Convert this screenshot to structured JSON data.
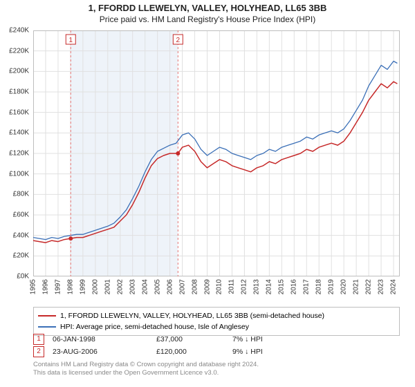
{
  "title_line1": "1, FFORDD LLEWELYN, VALLEY, HOLYHEAD, LL65 3BB",
  "title_line2": "Price paid vs. HM Land Registry's House Price Index (HPI)",
  "chart": {
    "type": "line",
    "background_color": "#ffffff",
    "grid_color": "#e0e0e0",
    "plot_border_color": "#bdbdbd",
    "shaded_band": {
      "x_start": 1998.02,
      "x_end": 2006.65,
      "fill": "#eef3f9"
    },
    "xlim": [
      1995,
      2024.5
    ],
    "ylim": [
      0,
      240000
    ],
    "ytick_step": 20000,
    "y_prefix": "£",
    "y_suffix": "K",
    "y_divisor": 1000,
    "xticks": [
      1995,
      1996,
      1997,
      1998,
      1999,
      2000,
      2001,
      2002,
      2003,
      2004,
      2005,
      2006,
      2007,
      2008,
      2009,
      2010,
      2011,
      2012,
      2013,
      2014,
      2015,
      2016,
      2017,
      2018,
      2019,
      2020,
      2021,
      2022,
      2023,
      2024
    ],
    "series": [
      {
        "name": "1, FFORDD LLEWELYN, VALLEY, HOLYHEAD, LL65 3BB (semi-detached house)",
        "color": "#c62828",
        "width": 1.5,
        "data": [
          [
            1995.0,
            35000
          ],
          [
            1995.5,
            34000
          ],
          [
            1996.0,
            33000
          ],
          [
            1996.5,
            35000
          ],
          [
            1997.0,
            34000
          ],
          [
            1997.5,
            36000
          ],
          [
            1998.0,
            37000
          ],
          [
            1998.5,
            38000
          ],
          [
            1999.0,
            38000
          ],
          [
            1999.5,
            40000
          ],
          [
            2000.0,
            42000
          ],
          [
            2000.5,
            44000
          ],
          [
            2001.0,
            46000
          ],
          [
            2001.5,
            48000
          ],
          [
            2002.0,
            54000
          ],
          [
            2002.5,
            60000
          ],
          [
            2003.0,
            70000
          ],
          [
            2003.5,
            82000
          ],
          [
            2004.0,
            96000
          ],
          [
            2004.5,
            108000
          ],
          [
            2005.0,
            115000
          ],
          [
            2005.5,
            118000
          ],
          [
            2006.0,
            120000
          ],
          [
            2006.65,
            120000
          ],
          [
            2007.0,
            126000
          ],
          [
            2007.5,
            128000
          ],
          [
            2008.0,
            122000
          ],
          [
            2008.5,
            112000
          ],
          [
            2009.0,
            106000
          ],
          [
            2009.5,
            110000
          ],
          [
            2010.0,
            114000
          ],
          [
            2010.5,
            112000
          ],
          [
            2011.0,
            108000
          ],
          [
            2011.5,
            106000
          ],
          [
            2012.0,
            104000
          ],
          [
            2012.5,
            102000
          ],
          [
            2013.0,
            106000
          ],
          [
            2013.5,
            108000
          ],
          [
            2014.0,
            112000
          ],
          [
            2014.5,
            110000
          ],
          [
            2015.0,
            114000
          ],
          [
            2015.5,
            116000
          ],
          [
            2016.0,
            118000
          ],
          [
            2016.5,
            120000
          ],
          [
            2017.0,
            124000
          ],
          [
            2017.5,
            122000
          ],
          [
            2018.0,
            126000
          ],
          [
            2018.5,
            128000
          ],
          [
            2019.0,
            130000
          ],
          [
            2019.5,
            128000
          ],
          [
            2020.0,
            132000
          ],
          [
            2020.5,
            140000
          ],
          [
            2021.0,
            150000
          ],
          [
            2021.5,
            160000
          ],
          [
            2022.0,
            172000
          ],
          [
            2022.5,
            180000
          ],
          [
            2023.0,
            188000
          ],
          [
            2023.5,
            184000
          ],
          [
            2024.0,
            190000
          ],
          [
            2024.3,
            188000
          ]
        ]
      },
      {
        "name": "HPI: Average price, semi-detached house, Isle of Anglesey",
        "color": "#3a6fb7",
        "width": 1.3,
        "data": [
          [
            1995.0,
            38000
          ],
          [
            1995.5,
            37000
          ],
          [
            1996.0,
            36000
          ],
          [
            1996.5,
            38000
          ],
          [
            1997.0,
            37000
          ],
          [
            1997.5,
            39000
          ],
          [
            1998.0,
            40000
          ],
          [
            1998.5,
            41000
          ],
          [
            1999.0,
            41000
          ],
          [
            1999.5,
            43000
          ],
          [
            2000.0,
            45000
          ],
          [
            2000.5,
            47000
          ],
          [
            2001.0,
            49000
          ],
          [
            2001.5,
            52000
          ],
          [
            2002.0,
            58000
          ],
          [
            2002.5,
            65000
          ],
          [
            2003.0,
            76000
          ],
          [
            2003.5,
            88000
          ],
          [
            2004.0,
            102000
          ],
          [
            2004.5,
            114000
          ],
          [
            2005.0,
            122000
          ],
          [
            2005.5,
            125000
          ],
          [
            2006.0,
            128000
          ],
          [
            2006.5,
            130000
          ],
          [
            2007.0,
            138000
          ],
          [
            2007.5,
            140000
          ],
          [
            2008.0,
            134000
          ],
          [
            2008.5,
            124000
          ],
          [
            2009.0,
            118000
          ],
          [
            2009.5,
            122000
          ],
          [
            2010.0,
            126000
          ],
          [
            2010.5,
            124000
          ],
          [
            2011.0,
            120000
          ],
          [
            2011.5,
            118000
          ],
          [
            2012.0,
            116000
          ],
          [
            2012.5,
            114000
          ],
          [
            2013.0,
            118000
          ],
          [
            2013.5,
            120000
          ],
          [
            2014.0,
            124000
          ],
          [
            2014.5,
            122000
          ],
          [
            2015.0,
            126000
          ],
          [
            2015.5,
            128000
          ],
          [
            2016.0,
            130000
          ],
          [
            2016.5,
            132000
          ],
          [
            2017.0,
            136000
          ],
          [
            2017.5,
            134000
          ],
          [
            2018.0,
            138000
          ],
          [
            2018.5,
            140000
          ],
          [
            2019.0,
            142000
          ],
          [
            2019.5,
            140000
          ],
          [
            2020.0,
            144000
          ],
          [
            2020.5,
            152000
          ],
          [
            2021.0,
            162000
          ],
          [
            2021.5,
            172000
          ],
          [
            2022.0,
            186000
          ],
          [
            2022.5,
            196000
          ],
          [
            2023.0,
            206000
          ],
          [
            2023.5,
            202000
          ],
          [
            2024.0,
            210000
          ],
          [
            2024.3,
            208000
          ]
        ]
      }
    ],
    "markers": [
      {
        "num": "1",
        "x": 1998.02,
        "y": 37000,
        "border": "#c62828",
        "dot": "#c62828",
        "dash_color": "#e57373"
      },
      {
        "num": "2",
        "x": 2006.65,
        "y": 120000,
        "border": "#c62828",
        "dot": "#c62828",
        "dash_color": "#e57373"
      }
    ]
  },
  "legend": {
    "entries": [
      {
        "color": "#c62828",
        "label": "1, FFORDD LLEWELYN, VALLEY, HOLYHEAD, LL65 3BB (semi-detached house)"
      },
      {
        "color": "#3a6fb7",
        "label": "HPI: Average price, semi-detached house, Isle of Anglesey"
      }
    ]
  },
  "transactions": [
    {
      "num": "1",
      "date": "06-JAN-1998",
      "price": "£37,000",
      "pct": "7% ↓ HPI"
    },
    {
      "num": "2",
      "date": "23-AUG-2006",
      "price": "£120,000",
      "pct": "9% ↓ HPI"
    }
  ],
  "footer_line1": "Contains HM Land Registry data © Crown copyright and database right 2024.",
  "footer_line2": "This data is licensed under the Open Government Licence v3.0."
}
